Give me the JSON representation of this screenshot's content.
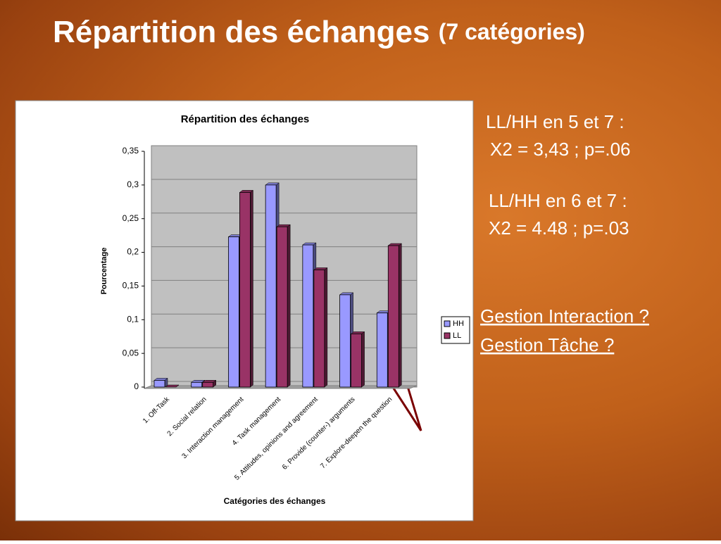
{
  "slide": {
    "title": "Répartition des échanges",
    "title_note": "(7 catégories)",
    "notes": [
      "LL/HH en 5 et 7 :",
      "X2 = 3,43 ; p=.06",
      "LL/HH en 6 et 7 :",
      "X2 = 4.48 ; p=.03"
    ],
    "questions": [
      "Gestion Interaction ?",
      "Gestion Tâche ?"
    ]
  },
  "chart_data": {
    "type": "bar",
    "title": "Répartition des échanges",
    "x_label": "Catégories des échanges",
    "y_label": "Pourcentage",
    "categories": [
      "1. Off-Task",
      "2. Social relation",
      "3. Interaction management",
      "4. Task management",
      "5. Attitudes, opinions and agreement",
      "6. Provide (counter-) arguments",
      "7. Explore-deepen the question"
    ],
    "series": [
      {
        "name": "HH",
        "color": "#9999ff",
        "values": [
          0.01,
          0.007,
          0.223,
          0.3,
          0.211,
          0.137,
          0.11
        ]
      },
      {
        "name": "LL",
        "color": "#993366",
        "values": [
          0,
          0.007,
          0.289,
          0.238,
          0.174,
          0.079,
          0.21
        ]
      }
    ],
    "ylim": [
      0,
      0.35
    ],
    "yticks": [
      0,
      {
        "value": 0.05,
        "label": "0,05"
      },
      {
        "value": 0.1,
        "label": "0,1"
      },
      {
        "value": 0.15,
        "label": "0,15"
      },
      {
        "value": 0.2,
        "label": "0,2"
      },
      {
        "value": 0.25,
        "label": "0,25"
      },
      {
        "value": 0.3,
        "label": "0,3"
      },
      {
        "value": 0.35,
        "label": "0,35"
      }
    ],
    "grid": true,
    "legend": "right"
  }
}
